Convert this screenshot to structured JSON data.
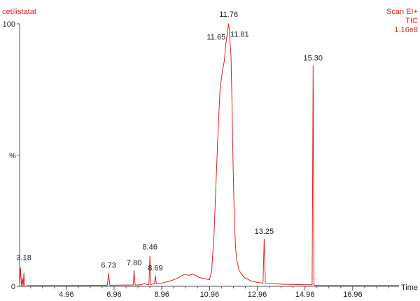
{
  "chart_data": {
    "type": "line",
    "sample_name": "cetilistatat",
    "header_lines": [
      "Scan EI+",
      "TIC",
      "1.16e8"
    ],
    "ylabel": "%",
    "xlabel": "Time",
    "xlim": [
      3.0,
      18.9
    ],
    "ylim": [
      0,
      100
    ],
    "x_ticks": [
      "4.96",
      "6.96",
      "8.96",
      "10.96",
      "12.96",
      "14.96",
      "16.96"
    ],
    "y_ticks": [
      "0",
      "100"
    ],
    "colors": {
      "trace": "#e02020",
      "axis": "#555555",
      "text": "#222222",
      "accent": "#e02020"
    },
    "series": [
      {
        "values": [
          [
            3.0,
            0
          ],
          [
            3.04,
            7
          ],
          [
            3.08,
            0
          ],
          [
            3.12,
            3
          ],
          [
            3.15,
            0
          ],
          [
            3.18,
            5
          ],
          [
            3.21,
            0
          ],
          [
            3.4,
            0.3
          ],
          [
            4.0,
            0.3
          ],
          [
            5.0,
            0.3
          ],
          [
            6.0,
            0.4
          ],
          [
            6.68,
            0.4
          ],
          [
            6.73,
            5
          ],
          [
            6.78,
            0.4
          ],
          [
            7.4,
            0.5
          ],
          [
            7.76,
            0.5
          ],
          [
            7.8,
            6
          ],
          [
            7.84,
            0.5
          ],
          [
            8.1,
            0.6
          ],
          [
            8.2,
            1.0
          ],
          [
            8.3,
            0.8
          ],
          [
            8.42,
            0.6
          ],
          [
            8.46,
            11.5
          ],
          [
            8.5,
            0.6
          ],
          [
            8.6,
            1.0
          ],
          [
            8.65,
            1.0
          ],
          [
            8.69,
            4
          ],
          [
            8.73,
            1.0
          ],
          [
            8.96,
            1.2
          ],
          [
            9.3,
            2.0
          ],
          [
            9.6,
            3.0
          ],
          [
            9.9,
            4.5
          ],
          [
            10.1,
            4.2
          ],
          [
            10.3,
            4.6
          ],
          [
            10.5,
            3.5
          ],
          [
            10.7,
            3.0
          ],
          [
            10.96,
            2.5
          ],
          [
            11.05,
            6
          ],
          [
            11.15,
            20
          ],
          [
            11.3,
            55
          ],
          [
            11.4,
            75
          ],
          [
            11.5,
            82
          ],
          [
            11.58,
            86
          ],
          [
            11.65,
            93
          ],
          [
            11.7,
            96
          ],
          [
            11.76,
            100
          ],
          [
            11.8,
            97
          ],
          [
            11.81,
            94
          ],
          [
            11.86,
            88
          ],
          [
            11.9,
            70
          ],
          [
            11.95,
            45
          ],
          [
            12.0,
            25
          ],
          [
            12.05,
            15
          ],
          [
            12.1,
            10
          ],
          [
            12.2,
            6
          ],
          [
            12.4,
            3.5
          ],
          [
            12.7,
            2.0
          ],
          [
            12.96,
            1.5
          ],
          [
            13.2,
            1.2
          ],
          [
            13.25,
            18
          ],
          [
            13.3,
            1.2
          ],
          [
            13.6,
            1.0
          ],
          [
            14.0,
            0.8
          ],
          [
            14.5,
            0.7
          ],
          [
            15.0,
            0.6
          ],
          [
            15.26,
            0.6
          ],
          [
            15.3,
            84
          ],
          [
            15.34,
            0.5
          ],
          [
            15.4,
            0.3
          ],
          [
            16.0,
            0.3
          ],
          [
            17.0,
            0.3
          ],
          [
            18.0,
            0.3
          ],
          [
            18.9,
            0.3
          ]
        ]
      }
    ],
    "annotations": [
      {
        "label": "3.18",
        "x": 3.18,
        "y": 9
      },
      {
        "label": "6.73",
        "x": 6.73,
        "y": 6
      },
      {
        "label": "7.80",
        "x": 7.8,
        "y": 7
      },
      {
        "label": "8.46",
        "x": 8.46,
        "y": 13
      },
      {
        "label": "8.69",
        "x": 8.69,
        "y": 5
      },
      {
        "label": "11.65",
        "x": 11.65,
        "y": 93
      },
      {
        "label": "11.76",
        "x": 11.76,
        "y": 100
      },
      {
        "label": "11.81",
        "x": 11.81,
        "y": 94
      },
      {
        "label": "13.25",
        "x": 13.25,
        "y": 19
      },
      {
        "label": "15.30",
        "x": 15.3,
        "y": 85
      }
    ]
  }
}
